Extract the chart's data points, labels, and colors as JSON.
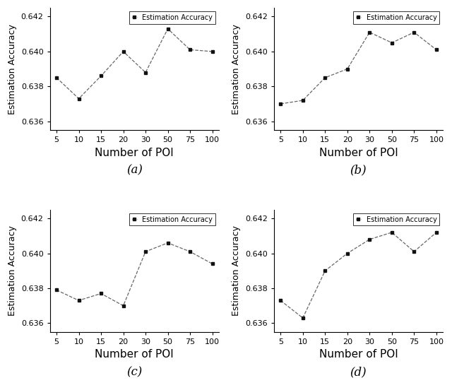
{
  "x_labels": [
    "5",
    "10",
    "15",
    "20",
    "30",
    "50",
    "75",
    "100"
  ],
  "subplots": [
    {
      "label": "(a)",
      "y": [
        0.6385,
        0.6373,
        0.6386,
        0.64,
        0.6388,
        0.6413,
        0.6401,
        0.64
      ]
    },
    {
      "label": "(b)",
      "y": [
        0.637,
        0.6372,
        0.6385,
        0.639,
        0.6411,
        0.6405,
        0.6411,
        0.6401
      ]
    },
    {
      "label": "(c)",
      "y": [
        0.6379,
        0.6373,
        0.6377,
        0.637,
        0.6401,
        0.6406,
        0.6401,
        0.6394
      ]
    },
    {
      "label": "(d)",
      "y": [
        0.6373,
        0.6363,
        0.639,
        0.64,
        0.6408,
        0.6412,
        0.6401,
        0.6412
      ]
    }
  ],
  "ylabel": "Estimation Accuracy",
  "xlabel": "Number of POI",
  "legend_label": "Estimation Accuracy",
  "ylim": [
    0.6355,
    0.6425
  ],
  "yticks": [
    0.636,
    0.638,
    0.64,
    0.642
  ],
  "background_color": "#ffffff",
  "line_color": "#666666",
  "marker_color": "#111111",
  "tick_fontsize": 8,
  "xlabel_fontsize": 11,
  "ylabel_fontsize": 9,
  "sublabel_fontsize": 12
}
